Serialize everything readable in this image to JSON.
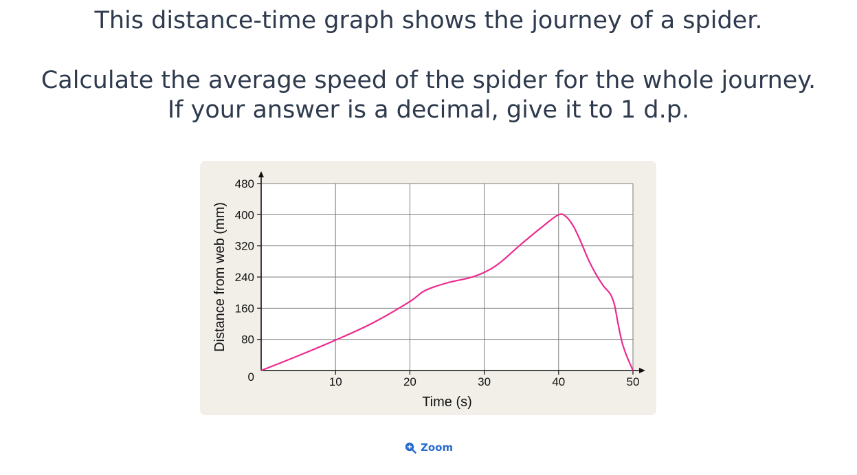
{
  "question": {
    "title": "This distance-time graph shows the journey of a spider.",
    "line1": "Calculate the average speed of the spider for the whole journey.",
    "line2": "If your answer is a decimal, give it to 1 d.p."
  },
  "zoom": {
    "label": "Zoom",
    "icon": "zoom-in-icon"
  },
  "chart_data": {
    "type": "line",
    "xlabel": "Time (s)",
    "ylabel": "Distance from web (mm)",
    "xlim": [
      0,
      50
    ],
    "ylim": [
      0,
      480
    ],
    "x_ticks": [
      0,
      10,
      20,
      30,
      40,
      50
    ],
    "x_tick_labels": [
      "10",
      "20",
      "30",
      "40",
      "50"
    ],
    "y_ticks": [
      0,
      80,
      160,
      240,
      320,
      400,
      480
    ],
    "y_tick_labels": [
      "0",
      "80",
      "160",
      "240",
      "320",
      "400",
      "480"
    ],
    "grid": true,
    "line_color": "#ec2a8f",
    "series": [
      {
        "x": [
          0,
          5,
          10,
          15,
          20,
          22,
          25,
          28,
          30,
          32,
          35,
          38,
          40,
          41,
          42,
          43,
          44,
          45,
          46,
          46.5,
          47,
          47.5,
          48,
          48.5,
          49,
          49.5,
          50
        ],
        "y": [
          0,
          38,
          78,
          122,
          177,
          205,
          225,
          238,
          252,
          275,
          325,
          372,
          400,
          395,
          370,
          330,
          285,
          248,
          218,
          207,
          195,
          170,
          120,
          75,
          45,
          22,
          0
        ]
      }
    ]
  }
}
